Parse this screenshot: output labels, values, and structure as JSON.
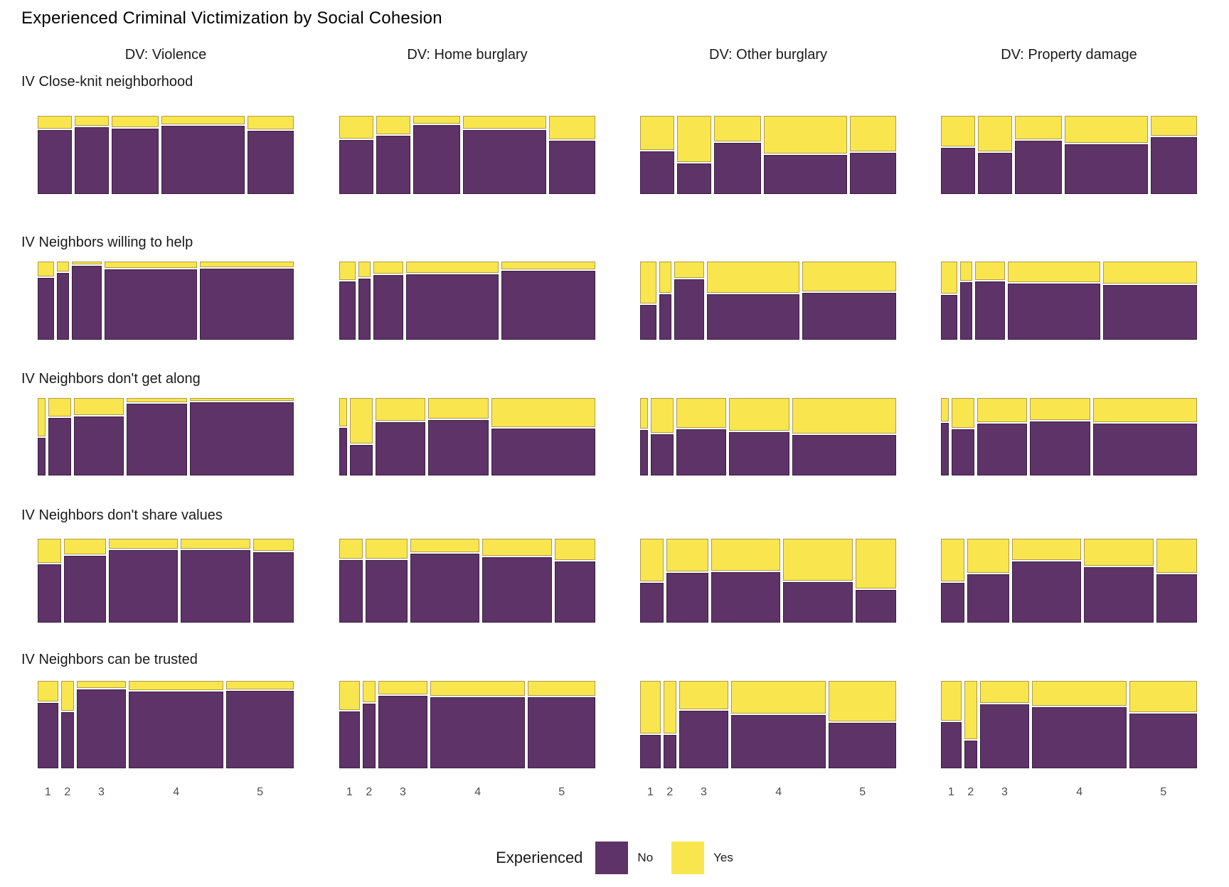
{
  "title": "Experienced Criminal Victimization by Social Cohesion",
  "legend": {
    "title": "Experienced",
    "items": [
      {
        "label": "No",
        "color": "#5e3367"
      },
      {
        "label": "Yes",
        "color": "#f9e64f"
      }
    ]
  },
  "colors": {
    "no": "#5e3367",
    "yes": "#f9e64f",
    "segment_border": "#3a1f44",
    "tick_text": "#4d4d4d",
    "label_text": "#1a1a1a"
  },
  "chart_data": {
    "type": "mosaic",
    "title": "Experienced Criminal Victimization by Social Cohesion",
    "facet_cols": [
      "DV: Violence",
      "DV: Home burglary",
      "DV: Other burglary",
      "DV: Property damage"
    ],
    "facet_rows": [
      "IV Close-knit neighborhood",
      "IV Neighbors willing to help",
      "IV Neighbors don't get along",
      "IV Neighbors don't share values",
      "IV Neighbors can be trusted"
    ],
    "x_categories": [
      "1",
      "2",
      "3",
      "4",
      "5"
    ],
    "series_legend": {
      "title": "Experienced",
      "levels": [
        "No",
        "Yes"
      ]
    },
    "rows": [
      {
        "label": "IV Close-knit neighborhood",
        "bar_width_fracs": [
          0.14,
          0.14,
          0.19,
          0.34,
          0.19
        ],
        "yes_fracs_by_col": [
          [
            0.17,
            0.13,
            0.15,
            0.11,
            0.18
          ],
          [
            0.3,
            0.24,
            0.1,
            0.17,
            0.31
          ],
          [
            0.44,
            0.6,
            0.33,
            0.49,
            0.46
          ],
          [
            0.4,
            0.46,
            0.31,
            0.35,
            0.26
          ]
        ]
      },
      {
        "label": "IV Neighbors willing to help",
        "bar_width_fracs": [
          0.068,
          0.049,
          0.121,
          0.379,
          0.383
        ],
        "yes_fracs_by_col": [
          [
            0.19,
            0.13,
            0.04,
            0.08,
            0.075
          ],
          [
            0.24,
            0.2,
            0.16,
            0.15,
            0.1
          ],
          [
            0.55,
            0.41,
            0.21,
            0.41,
            0.39
          ],
          [
            0.42,
            0.25,
            0.24,
            0.27,
            0.29
          ]
        ]
      },
      {
        "label": "IV Neighbors don't get along",
        "bar_width_fracs": [
          0.033,
          0.093,
          0.203,
          0.247,
          0.424
        ],
        "yes_fracs_by_col": [
          [
            0.5,
            0.24,
            0.22,
            0.055,
            0.04
          ],
          [
            0.37,
            0.6,
            0.3,
            0.27,
            0.38
          ],
          [
            0.4,
            0.46,
            0.39,
            0.43,
            0.47
          ],
          [
            0.31,
            0.39,
            0.32,
            0.29,
            0.32
          ]
        ]
      },
      {
        "label": "IV Neighbors don't share values",
        "bar_width_fracs": [
          0.096,
          0.171,
          0.283,
          0.283,
          0.167
        ],
        "yes_fracs_by_col": [
          [
            0.29,
            0.19,
            0.12,
            0.12,
            0.15
          ],
          [
            0.24,
            0.24,
            0.16,
            0.21,
            0.26
          ],
          [
            0.52,
            0.4,
            0.39,
            0.51,
            0.6
          ],
          [
            0.52,
            0.41,
            0.26,
            0.33,
            0.41
          ]
        ]
      },
      {
        "label": "IV Neighbors can be trusted",
        "bar_width_fracs": [
          0.083,
          0.054,
          0.2,
          0.388,
          0.275
        ],
        "yes_fracs_by_col": [
          [
            0.24,
            0.345,
            0.085,
            0.11,
            0.1
          ],
          [
            0.335,
            0.25,
            0.155,
            0.176,
            0.176
          ],
          [
            0.61,
            0.61,
            0.33,
            0.38,
            0.47
          ],
          [
            0.465,
            0.68,
            0.26,
            0.29,
            0.36
          ]
        ]
      }
    ]
  }
}
